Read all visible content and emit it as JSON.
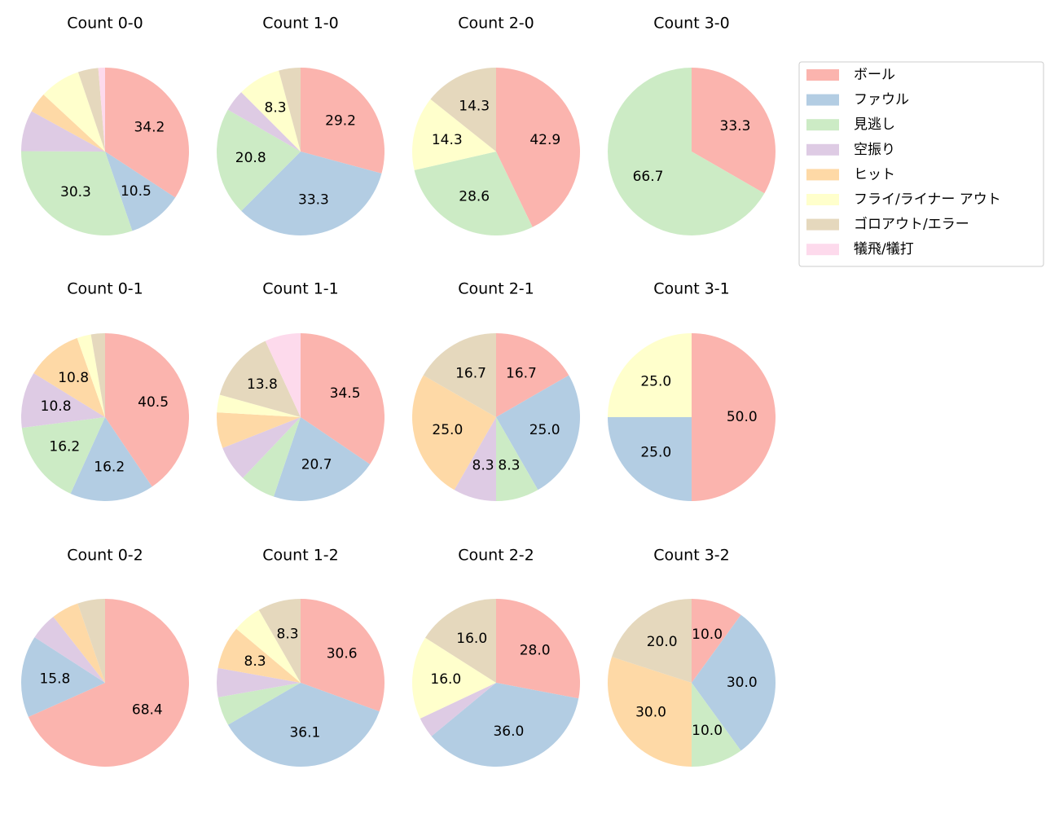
{
  "legend": {
    "labels": [
      "ボール",
      "ファウル",
      "見逃し",
      "空振り",
      "ヒット",
      "フライ/ライナー アウト",
      "ゴロアウト/エラー",
      "犠飛/犠打"
    ],
    "colors": [
      "#fbb4ae",
      "#b3cde3",
      "#ccebc5",
      "#decbe4",
      "#fed9a6",
      "#ffffcc",
      "#e5d8bd",
      "#fddaec"
    ]
  },
  "chart_data": [
    {
      "type": "pie",
      "title": "Count 0-0",
      "values": [
        34.2,
        10.5,
        30.3,
        7.9,
        3.9,
        7.9,
        3.9,
        1.3
      ],
      "value_labels": [
        "34.2",
        "10.5",
        "30.3",
        null,
        null,
        null,
        null,
        null
      ]
    },
    {
      "type": "pie",
      "title": "Count 1-0",
      "values": [
        29.2,
        33.3,
        20.8,
        4.2,
        0,
        8.3,
        4.2,
        0
      ],
      "value_labels": [
        "29.2",
        "33.3",
        "20.8",
        null,
        null,
        "8.3",
        null,
        null
      ]
    },
    {
      "type": "pie",
      "title": "Count 2-0",
      "values": [
        42.9,
        0,
        28.6,
        0,
        0,
        14.3,
        14.3,
        0
      ],
      "value_labels": [
        "42.9",
        null,
        "28.6",
        null,
        null,
        "14.3",
        "14.3",
        null
      ]
    },
    {
      "type": "pie",
      "title": "Count 3-0",
      "values": [
        33.3,
        0,
        66.7,
        0,
        0,
        0,
        0,
        0
      ],
      "value_labels": [
        "33.3",
        null,
        "66.7",
        null,
        null,
        null,
        null,
        null
      ]
    },
    {
      "type": "pie",
      "title": "Count 0-1",
      "values": [
        40.5,
        16.2,
        16.2,
        10.8,
        10.8,
        2.7,
        2.7,
        0
      ],
      "value_labels": [
        "40.5",
        "16.2",
        "16.2",
        "10.8",
        "10.8",
        null,
        null,
        null
      ]
    },
    {
      "type": "pie",
      "title": "Count 1-1",
      "values": [
        34.5,
        20.7,
        6.9,
        6.9,
        6.9,
        3.4,
        13.8,
        6.9
      ],
      "value_labels": [
        "34.5",
        "20.7",
        null,
        null,
        null,
        null,
        "13.8",
        null
      ]
    },
    {
      "type": "pie",
      "title": "Count 2-1",
      "values": [
        16.7,
        25.0,
        8.3,
        8.3,
        25.0,
        0,
        16.7,
        0
      ],
      "value_labels": [
        "16.7",
        "25.0",
        "8.3",
        "8.3",
        "25.0",
        null,
        "16.7",
        null
      ]
    },
    {
      "type": "pie",
      "title": "Count 3-1",
      "values": [
        50.0,
        25.0,
        0,
        0,
        0,
        25.0,
        0,
        0
      ],
      "value_labels": [
        "50.0",
        "25.0",
        null,
        null,
        null,
        "25.0",
        null,
        null
      ]
    },
    {
      "type": "pie",
      "title": "Count 0-2",
      "values": [
        68.4,
        15.8,
        0,
        5.3,
        5.3,
        0,
        5.3,
        0
      ],
      "value_labels": [
        "68.4",
        "15.8",
        null,
        null,
        null,
        null,
        null,
        null
      ]
    },
    {
      "type": "pie",
      "title": "Count 1-2",
      "values": [
        30.6,
        36.1,
        5.6,
        5.6,
        8.3,
        5.6,
        8.3,
        0
      ],
      "value_labels": [
        "30.6",
        "36.1",
        null,
        null,
        "8.3",
        null,
        "8.3",
        null
      ]
    },
    {
      "type": "pie",
      "title": "Count 2-2",
      "values": [
        28.0,
        36.0,
        0,
        4.0,
        0,
        16.0,
        16.0,
        0
      ],
      "value_labels": [
        "28.0",
        "36.0",
        null,
        null,
        null,
        "16.0",
        "16.0",
        null
      ]
    },
    {
      "type": "pie",
      "title": "Count 3-2",
      "values": [
        10.0,
        30.0,
        10.0,
        0,
        30.0,
        0,
        20.0,
        0
      ],
      "value_labels": [
        "10.0",
        "30.0",
        "10.0",
        null,
        "30.0",
        null,
        "20.0",
        null
      ]
    }
  ]
}
